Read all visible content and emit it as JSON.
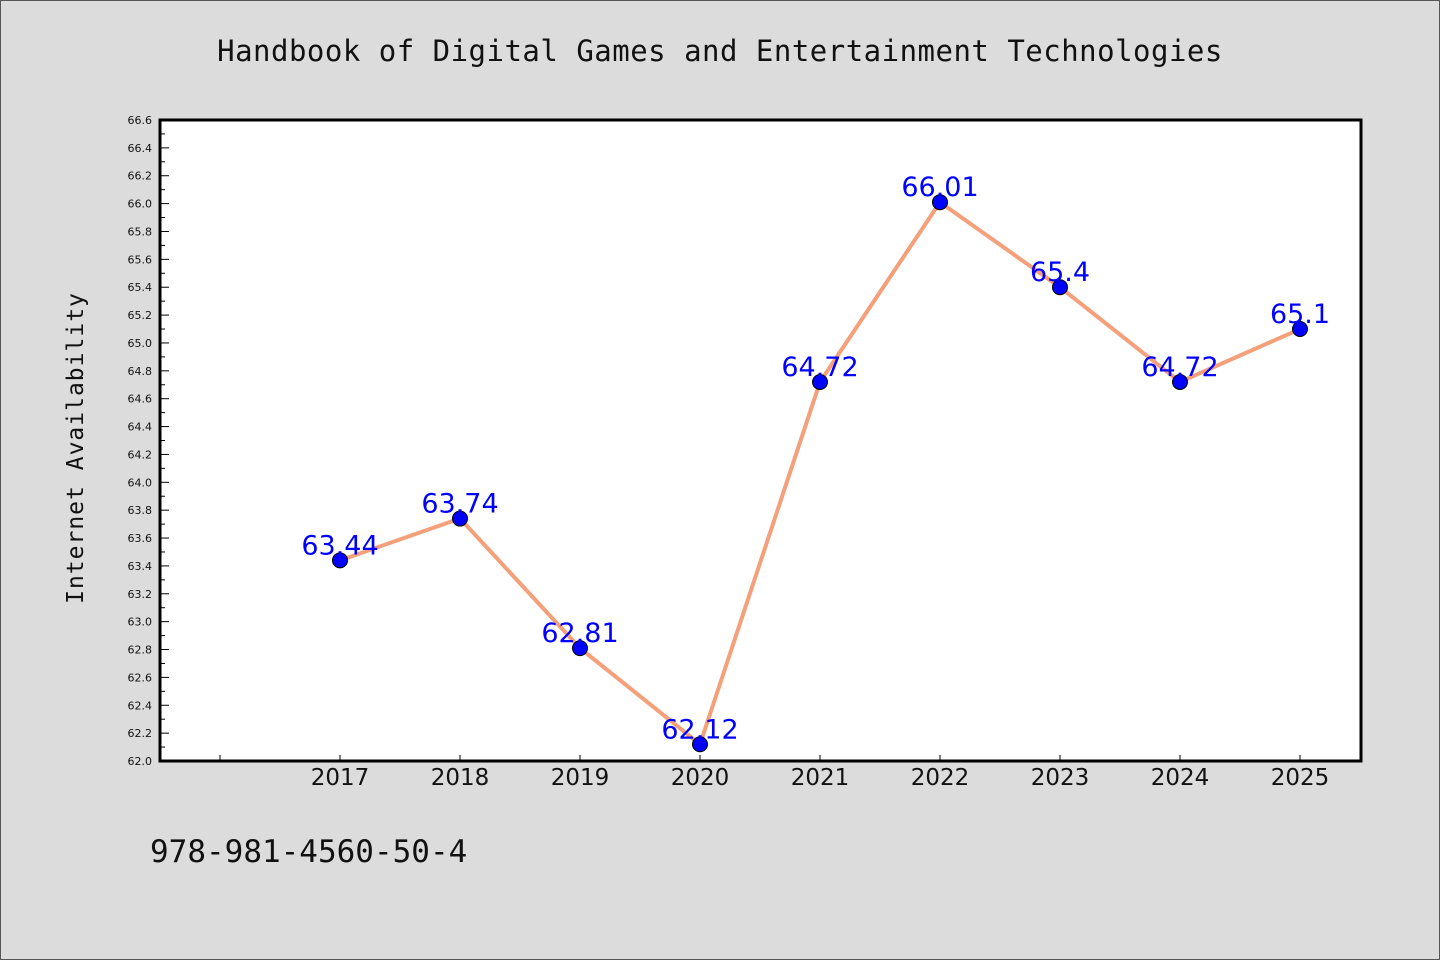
{
  "chart_data": {
    "type": "line",
    "title": "Handbook of Digital Games and Entertainment Technologies",
    "xlabel": "",
    "ylabel": "Internet Availability",
    "categories": [
      "2017",
      "2018",
      "2019",
      "2020",
      "2021",
      "2022",
      "2023",
      "2024",
      "2025"
    ],
    "series": [
      {
        "values": [
          63.44,
          63.74,
          62.81,
          62.12,
          64.72,
          66.01,
          65.4,
          64.72,
          65.1
        ],
        "labels": [
          "63.44",
          "63.74",
          "62.81",
          "62.12",
          "64.72",
          "66.01",
          "65.4",
          "64.72",
          "65.1"
        ]
      }
    ],
    "ylim": [
      62.0,
      66.6
    ],
    "yticks": [
      "62.0",
      "62.2",
      "62.4",
      "62.6",
      "62.8",
      "63.0",
      "63.2",
      "63.4",
      "63.6",
      "63.8",
      "64.0",
      "64.2",
      "64.4",
      "64.6",
      "64.8",
      "65.0",
      "65.2",
      "65.4",
      "65.6",
      "65.8",
      "66.0",
      "66.2",
      "66.4",
      "66.6"
    ],
    "grid": false,
    "colors": {
      "line": "#f4a07a",
      "marker": "#0000ff",
      "label": "#0000ff"
    }
  },
  "footer": {
    "text": "978-981-4560-50-4"
  }
}
